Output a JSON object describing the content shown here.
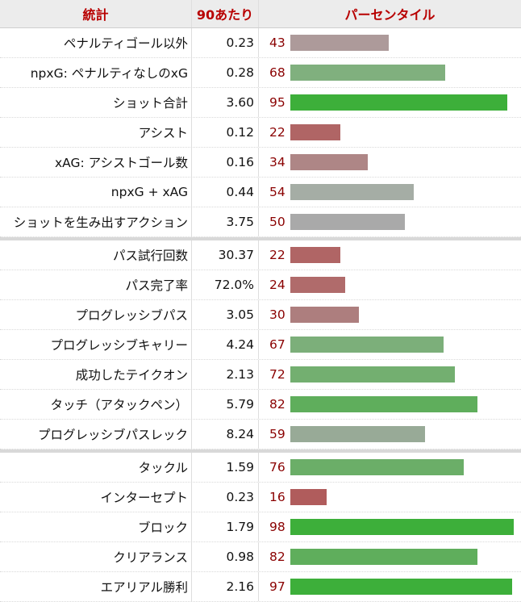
{
  "headers": {
    "stat": "統計",
    "per90": "90あたり",
    "percentile": "パーセンタイル"
  },
  "colors": {
    "good": "#3daf3a",
    "neutral": "#a6a6a6",
    "bad": "#ad6464",
    "header_text": "#b80000",
    "percentile_text": "#8a0000"
  },
  "chart_data": {
    "type": "bar",
    "orientation": "horizontal",
    "title": "",
    "xlim": [
      0,
      100
    ],
    "groups": [
      {
        "rows": [
          {
            "label": "ペナルティゴール以外",
            "per90": "0.23",
            "percentile": 43,
            "color": "#ad9a9a"
          },
          {
            "label": "npxG: ペナルティなしのxG",
            "per90": "0.28",
            "percentile": 68,
            "color": "#80b07e"
          },
          {
            "label": "ショット合計",
            "per90": "3.60",
            "percentile": 95,
            "color": "#3daf3a"
          },
          {
            "label": "アシスト",
            "per90": "0.12",
            "percentile": 22,
            "color": "#b06565"
          },
          {
            "label": "xAG: アシストゴール数",
            "per90": "0.16",
            "percentile": 34,
            "color": "#ae8686"
          },
          {
            "label": "npxG + xAG",
            "per90": "0.44",
            "percentile": 54,
            "color": "#a5ada5"
          },
          {
            "label": "ショットを生み出すアクション",
            "per90": "3.75",
            "percentile": 50,
            "color": "#a9a9a9"
          }
        ]
      },
      {
        "rows": [
          {
            "label": "パス試行回数",
            "per90": "30.37",
            "percentile": 22,
            "color": "#b06565"
          },
          {
            "label": "パス完了率",
            "per90": "72.0%",
            "percentile": 24,
            "color": "#b06b6b"
          },
          {
            "label": "プログレッシブパス",
            "per90": "3.05",
            "percentile": 30,
            "color": "#ad7e7e"
          },
          {
            "label": "プログレッシブキャリー",
            "per90": "4.24",
            "percentile": 67,
            "color": "#7caf7a"
          },
          {
            "label": "成功したテイクオン",
            "per90": "2.13",
            "percentile": 72,
            "color": "#73af70"
          },
          {
            "label": "タッチ（アタックペン）",
            "per90": "5.79",
            "percentile": 82,
            "color": "#5fae5c"
          },
          {
            "label": "プログレッシブパスレック",
            "per90": "8.24",
            "percentile": 59,
            "color": "#98aa97"
          }
        ]
      },
      {
        "rows": [
          {
            "label": "タックル",
            "per90": "1.59",
            "percentile": 76,
            "color": "#6bae68"
          },
          {
            "label": "インターセプト",
            "per90": "0.23",
            "percentile": 16,
            "color": "#b05c5c"
          },
          {
            "label": "ブロック",
            "per90": "1.79",
            "percentile": 98,
            "color": "#3daf3a"
          },
          {
            "label": "クリアランス",
            "per90": "0.98",
            "percentile": 82,
            "color": "#5fae5c"
          },
          {
            "label": "エアリアル勝利",
            "per90": "2.16",
            "percentile": 97,
            "color": "#3daf3a"
          }
        ]
      }
    ]
  }
}
